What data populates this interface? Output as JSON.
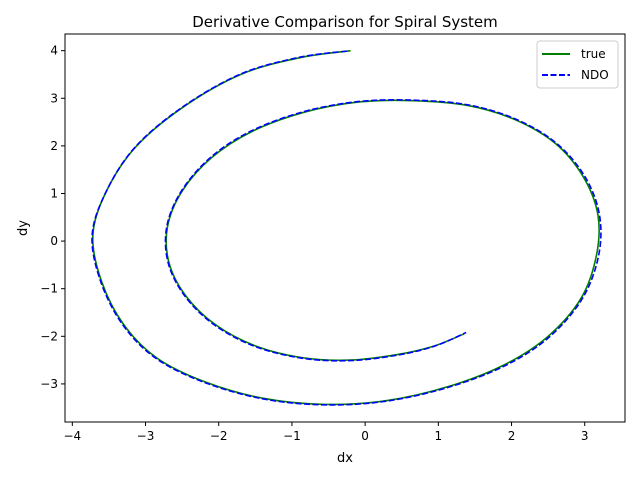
{
  "chart_data": {
    "type": "line",
    "title": "Derivative Comparison for Spiral System",
    "xlabel": "dx",
    "ylabel": "dy",
    "xlim": [
      -4.1,
      3.55
    ],
    "ylim": [
      -3.8,
      4.35
    ],
    "xticks": [
      -4,
      -3,
      -2,
      -1,
      0,
      1,
      2,
      3
    ],
    "yticks": [
      -3,
      -2,
      -1,
      0,
      1,
      2,
      3,
      4
    ],
    "xtick_labels": [
      "−4",
      "−3",
      "−2",
      "−1",
      "0",
      "1",
      "2",
      "3"
    ],
    "ytick_labels": [
      "−3",
      "−2",
      "−1",
      "0",
      "1",
      "2",
      "3",
      "4"
    ],
    "grid": false,
    "legend_position": "upper right",
    "series": [
      {
        "name": "true",
        "color": "#008000",
        "style": "solid",
        "x": [
          -0.2,
          -0.9,
          -1.7,
          -2.5,
          -3.15,
          -3.55,
          -3.72,
          -3.6,
          -3.3,
          -2.85,
          -2.2,
          -1.4,
          -0.55,
          0.3,
          1.15,
          1.9,
          2.5,
          2.95,
          3.16,
          3.18,
          2.98,
          2.6,
          2.05,
          1.4,
          0.65,
          -0.1,
          -0.85,
          -1.55,
          -2.1,
          -2.5,
          -2.7,
          -2.68,
          -2.45,
          -2.05,
          -1.5,
          -0.85,
          -0.2,
          0.45,
          0.95,
          1.35
        ],
        "y": [
          4.0,
          3.85,
          3.5,
          2.8,
          1.95,
          1.0,
          0.1,
          -0.85,
          -1.75,
          -2.45,
          -2.95,
          -3.3,
          -3.43,
          -3.35,
          -3.05,
          -2.6,
          -2.0,
          -1.2,
          -0.3,
          0.55,
          1.35,
          2.05,
          2.55,
          2.85,
          2.95,
          2.92,
          2.7,
          2.3,
          1.75,
          1.05,
          0.3,
          -0.45,
          -1.15,
          -1.75,
          -2.2,
          -2.45,
          -2.5,
          -2.38,
          -2.2,
          -1.95
        ]
      },
      {
        "name": "NDO",
        "color": "#0000ff",
        "style": "dashed",
        "x": [
          -0.25,
          -0.9,
          -1.7,
          -2.5,
          -3.15,
          -3.55,
          -3.73,
          -3.61,
          -3.31,
          -2.86,
          -2.21,
          -1.41,
          -0.56,
          0.3,
          1.16,
          1.92,
          2.52,
          2.97,
          3.19,
          3.2,
          3.0,
          2.61,
          2.06,
          1.41,
          0.66,
          -0.1,
          -0.86,
          -1.56,
          -2.11,
          -2.51,
          -2.71,
          -2.69,
          -2.46,
          -2.06,
          -1.51,
          -0.86,
          -0.2,
          0.46,
          0.96,
          1.38
        ],
        "y": [
          3.99,
          3.86,
          3.51,
          2.81,
          1.96,
          1.0,
          0.1,
          -0.86,
          -1.76,
          -2.46,
          -2.96,
          -3.31,
          -3.44,
          -3.36,
          -3.06,
          -2.61,
          -2.01,
          -1.2,
          -0.3,
          0.56,
          1.36,
          2.06,
          2.56,
          2.86,
          2.96,
          2.93,
          2.71,
          2.31,
          1.76,
          1.05,
          0.3,
          -0.46,
          -1.16,
          -1.76,
          -2.21,
          -2.46,
          -2.51,
          -2.39,
          -2.2,
          -1.92
        ]
      }
    ]
  }
}
